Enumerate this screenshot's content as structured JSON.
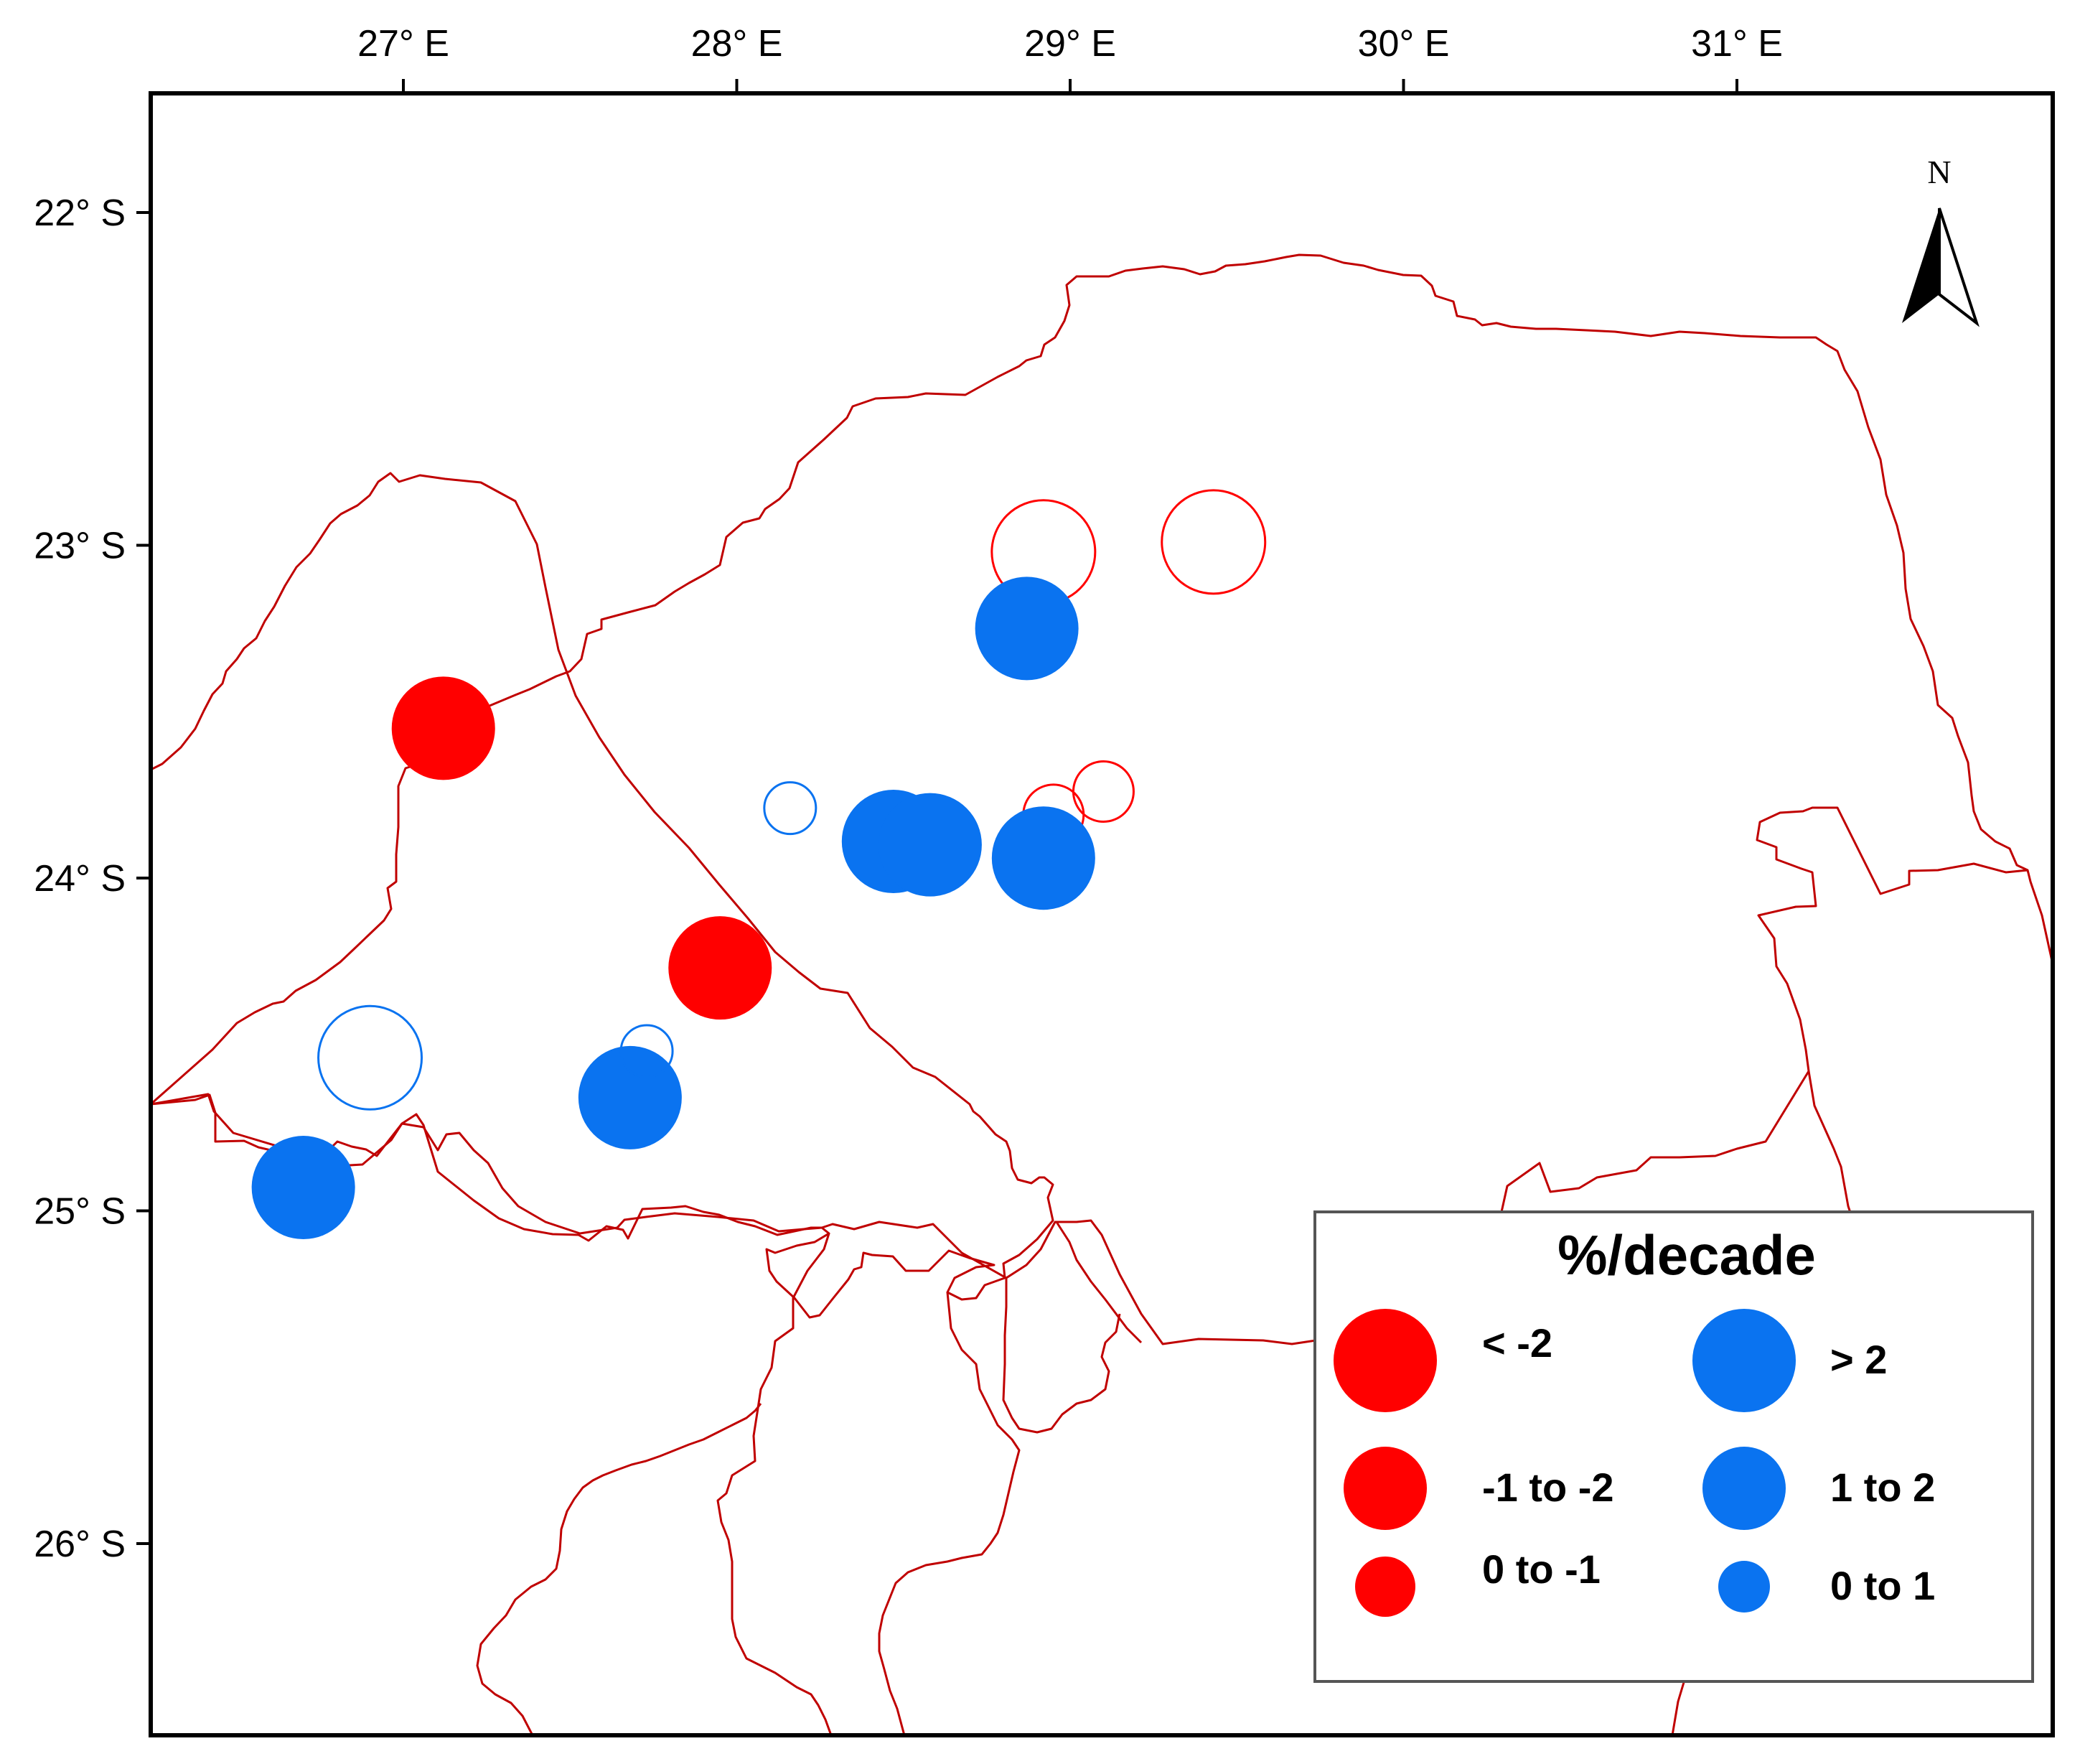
{
  "map": {
    "lon_ticks": [
      {
        "value": 27,
        "label": "27° E"
      },
      {
        "value": 28,
        "label": "28° E"
      },
      {
        "value": 29,
        "label": "29° E"
      },
      {
        "value": 30,
        "label": "30° E"
      },
      {
        "value": 31,
        "label": "31° E"
      }
    ],
    "lat_ticks": [
      {
        "value": -22,
        "label": "22° S"
      },
      {
        "value": -23,
        "label": "23° S"
      },
      {
        "value": -24,
        "label": "24° S"
      },
      {
        "value": -25,
        "label": "25° S"
      },
      {
        "value": -26,
        "label": "26° S"
      }
    ],
    "north_arrow_label": "N",
    "colors": {
      "negative": "#ff0000",
      "positive": "#0a73f0",
      "boundary": "#c00000",
      "frame": "#000000"
    },
    "stations": [
      {
        "lon": 27.12,
        "lat": -23.55,
        "sign": "negative",
        "class": "< -2",
        "filled": true
      },
      {
        "lon": 27.95,
        "lat": -24.27,
        "sign": "negative",
        "class": "< -2",
        "filled": true
      },
      {
        "lon": 28.92,
        "lat": -23.02,
        "sign": "negative",
        "class": "< -2",
        "filled": false
      },
      {
        "lon": 29.43,
        "lat": -22.99,
        "sign": "negative",
        "class": "< -2",
        "filled": false
      },
      {
        "lon": 28.95,
        "lat": -23.81,
        "sign": "negative",
        "class": "0 to -1",
        "filled": false
      },
      {
        "lon": 29.1,
        "lat": -23.74,
        "sign": "negative",
        "class": "0 to -1",
        "filled": false
      },
      {
        "lon": 28.87,
        "lat": -23.25,
        "sign": "positive",
        "class": "> 2",
        "filled": true
      },
      {
        "lon": 28.47,
        "lat": -23.89,
        "sign": "positive",
        "class": "> 2",
        "filled": true
      },
      {
        "lon": 28.58,
        "lat": -23.9,
        "sign": "positive",
        "class": "> 2",
        "filled": true
      },
      {
        "lon": 28.92,
        "lat": -23.94,
        "sign": "positive",
        "class": "> 2",
        "filled": true
      },
      {
        "lon": 27.68,
        "lat": -24.66,
        "sign": "positive",
        "class": "> 2",
        "filled": true
      },
      {
        "lon": 26.7,
        "lat": -24.93,
        "sign": "positive",
        "class": "> 2",
        "filled": true
      },
      {
        "lon": 26.9,
        "lat": -24.54,
        "sign": "positive",
        "class": "> 2",
        "filled": false
      },
      {
        "lon": 28.16,
        "lat": -23.79,
        "sign": "positive",
        "class": "0 to 1",
        "filled": false
      },
      {
        "lon": 27.73,
        "lat": -24.52,
        "sign": "positive",
        "class": "0 to 1",
        "filled": false
      }
    ]
  },
  "legend": {
    "title": "%/decade",
    "negative_items": [
      {
        "label": "< -2",
        "class": "< -2"
      },
      {
        "label": "-1 to -2",
        "class": "-1 to -2"
      },
      {
        "label": "0 to -1",
        "class": "0 to -1"
      }
    ],
    "positive_items": [
      {
        "label": "> 2",
        "class": "> 2"
      },
      {
        "label": "1 to 2",
        "class": "1 to 2"
      },
      {
        "label": "0 to 1",
        "class": "0 to 1"
      }
    ]
  }
}
